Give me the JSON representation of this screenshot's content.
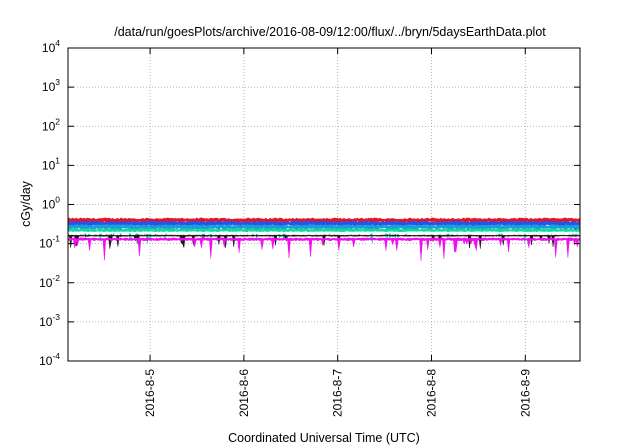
{
  "chart_data": {
    "type": "area",
    "title": "/data/run/goesPlots/archive/2016-08-09/12:00/flux/../bryn/5daysEarthData.plot",
    "xlabel": "Coordinated Universal Time (UTC)",
    "ylabel": "cGy/day",
    "yscale": "log",
    "ylim": [
      0.0001,
      10000
    ],
    "xlim": [
      "2016-08-04 03:00",
      "2016-08-09 14:00"
    ],
    "y_ticks": [
      {
        "value": 0.0001,
        "base": "10",
        "exp": "-4"
      },
      {
        "value": 0.001,
        "base": "10",
        "exp": "-3"
      },
      {
        "value": 0.01,
        "base": "10",
        "exp": "-2"
      },
      {
        "value": 0.1,
        "base": "10",
        "exp": "-1"
      },
      {
        "value": 1,
        "base": "10",
        "exp": "0"
      },
      {
        "value": 10,
        "base": "10",
        "exp": "1"
      },
      {
        "value": 100,
        "base": "10",
        "exp": "2"
      },
      {
        "value": 1000,
        "base": "10",
        "exp": "3"
      },
      {
        "value": 10000,
        "base": "10",
        "exp": "4"
      }
    ],
    "x_ticks": [
      {
        "date": "2016-08-05 00:00",
        "label": "2016-8-5"
      },
      {
        "date": "2016-08-06 00:00",
        "label": "2016-8-6"
      },
      {
        "date": "2016-08-07 00:00",
        "label": "2016-8-7"
      },
      {
        "date": "2016-08-08 00:00",
        "label": "2016-8-8"
      },
      {
        "date": "2016-08-09 00:00",
        "label": "2016-8-9"
      }
    ],
    "grid": true,
    "legend": "none",
    "series": [
      {
        "color": "#e8141b",
        "level": 0.4,
        "spread": 0.1
      },
      {
        "color": "#2a52e8",
        "level": 0.33,
        "spread": 0.12
      },
      {
        "color": "#19a0d8",
        "level": 0.27,
        "spread": 0.1
      },
      {
        "color": "#11d9a3",
        "level": 0.22,
        "spread": 0.08
      },
      {
        "color": "#ffffff",
        "level": 0.19,
        "spread": 0.05
      },
      {
        "color": "#1a1a1a",
        "level": 0.16,
        "spread": 0.03
      },
      {
        "color": "#f20df0",
        "level": 0.13,
        "spread": 0.06
      }
    ]
  }
}
